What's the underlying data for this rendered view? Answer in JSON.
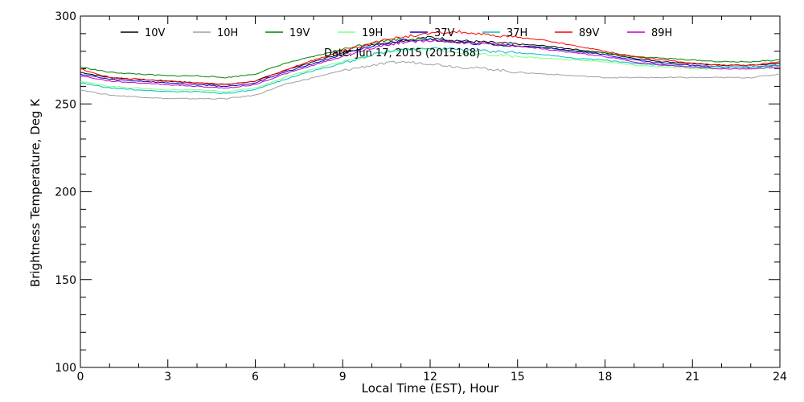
{
  "chart_data": {
    "type": "line",
    "title": "",
    "annotation": "Date: Jun 17, 2015 (2015168)",
    "xlabel": "Local Time (EST), Hour",
    "ylabel": "Brightness Temperature, Deg K",
    "xlim": [
      0,
      24
    ],
    "ylim": [
      100,
      300
    ],
    "xticks": [
      0,
      3,
      6,
      9,
      12,
      15,
      18,
      21,
      24
    ],
    "yticks": [
      100,
      150,
      200,
      250,
      300
    ],
    "grid": false,
    "legend_position": "top",
    "x": [
      0,
      1,
      2,
      3,
      4,
      5,
      6,
      7,
      8,
      9,
      10,
      11,
      12,
      13,
      14,
      15,
      16,
      17,
      18,
      19,
      20,
      21,
      22,
      23,
      24
    ],
    "series": [
      {
        "name": "10V",
        "color": "#000000",
        "values": [
          268,
          265,
          264,
          263,
          262,
          261,
          263,
          269,
          274,
          279,
          284,
          286,
          288,
          286,
          285,
          284,
          283,
          281,
          279,
          276,
          274,
          273,
          272,
          272,
          273
        ]
      },
      {
        "name": "10H",
        "color": "#a0a0a0",
        "values": [
          258,
          255,
          254,
          253,
          253,
          253,
          255,
          261,
          265,
          269,
          272,
          274,
          273,
          271,
          270,
          268,
          267,
          266,
          265,
          265,
          265,
          265,
          265,
          265,
          267
        ]
      },
      {
        "name": "19V",
        "color": "#008000",
        "values": [
          271,
          268,
          267,
          266,
          266,
          265,
          267,
          273,
          277,
          281,
          285,
          287,
          287,
          285,
          284,
          283,
          282,
          280,
          279,
          277,
          276,
          275,
          274,
          274,
          275
        ]
      },
      {
        "name": "19H",
        "color": "#80ff80",
        "values": [
          263,
          260,
          259,
          258,
          258,
          257,
          259,
          265,
          270,
          274,
          278,
          281,
          281,
          279,
          278,
          277,
          276,
          275,
          274,
          272,
          271,
          270,
          270,
          270,
          271
        ]
      },
      {
        "name": "37V",
        "color": "#0000c0",
        "values": [
          267,
          264,
          263,
          262,
          261,
          260,
          262,
          268,
          273,
          278,
          283,
          286,
          287,
          285,
          284,
          283,
          282,
          280,
          278,
          275,
          273,
          272,
          271,
          271,
          272
        ]
      },
      {
        "name": "37H",
        "color": "#00c0c0",
        "values": [
          262,
          259,
          258,
          257,
          257,
          256,
          258,
          264,
          269,
          273,
          278,
          281,
          282,
          281,
          280,
          279,
          278,
          276,
          275,
          273,
          272,
          271,
          271,
          271,
          272
        ]
      },
      {
        "name": "89V",
        "color": "#ff0000",
        "values": [
          270,
          265,
          264,
          263,
          262,
          261,
          263,
          269,
          275,
          280,
          285,
          288,
          290,
          291,
          289,
          288,
          286,
          283,
          280,
          277,
          275,
          273,
          272,
          272,
          274
        ]
      },
      {
        "name": "89H",
        "color": "#c000c0",
        "values": [
          266,
          263,
          262,
          261,
          260,
          259,
          261,
          267,
          272,
          277,
          282,
          285,
          286,
          285,
          284,
          283,
          281,
          279,
          277,
          274,
          272,
          271,
          270,
          270,
          271
        ]
      }
    ]
  }
}
